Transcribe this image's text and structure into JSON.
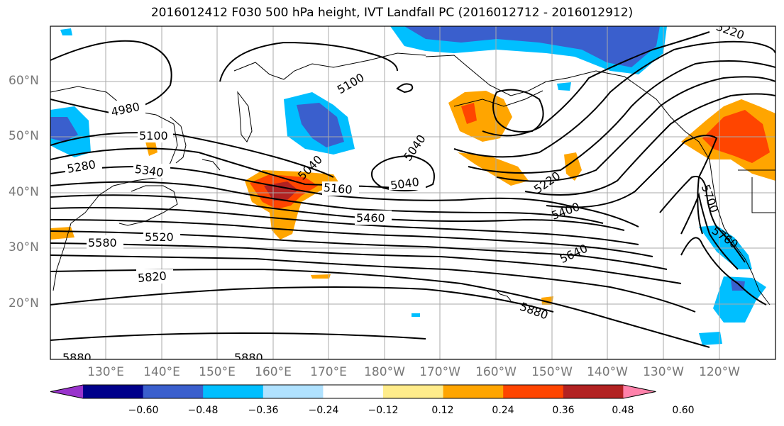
{
  "title": "2016012412 F030 500 hPa height, IVT Landfall PC (2016012712 - 2016012912)",
  "lat_labels": [
    "60°N",
    "50°N",
    "40°N",
    "30°N",
    "20°N"
  ],
  "lon_labels": [
    "130°E",
    "140°E",
    "150°E",
    "160°E",
    "170°E",
    "180°W",
    "170°W",
    "160°W",
    "150°W",
    "140°W",
    "130°W",
    "120°W"
  ],
  "contour_labels": [
    "4980",
    "5100",
    "5280",
    "5340",
    "5040",
    "5100",
    "5040",
    "5040",
    "5160",
    "5220",
    "5220",
    "5400",
    "5460",
    "5520",
    "5580",
    "5640",
    "5700",
    "5760",
    "5820",
    "5880",
    "5880",
    "5880"
  ],
  "colorbar": {
    "ticks": [
      "−0.60",
      "−0.48",
      "−0.36",
      "−0.24",
      "−0.12",
      "0.12",
      "0.24",
      "0.36",
      "0.48",
      "0.60"
    ],
    "colors": [
      "#9933cc",
      "#00008b",
      "#3a5fcd",
      "#00bfff",
      "#b0e2ff",
      "#ffffff",
      "#ffec8b",
      "#ffa500",
      "#ff4500",
      "#b22222",
      "#ff82ab"
    ]
  },
  "colors": {
    "positive_strong": "#b22222",
    "positive_mid": "#ff4500",
    "positive_low": "#ffa500",
    "positive_weak": "#ffec8b",
    "negative_weak": "#b0e2ff",
    "negative_low": "#00bfff",
    "negative_mid": "#3a5fcd"
  }
}
